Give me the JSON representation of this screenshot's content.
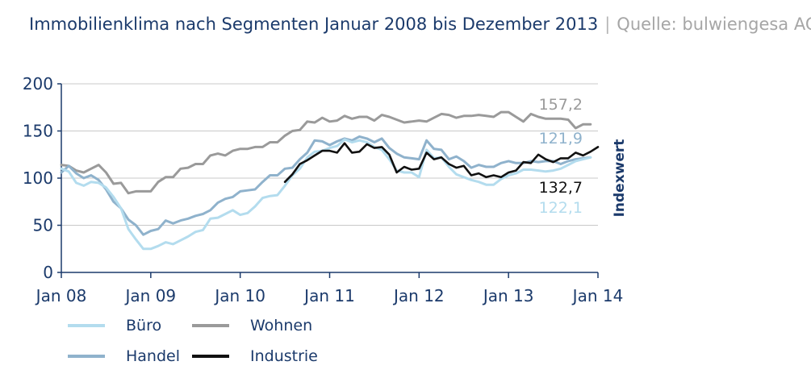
{
  "header": {
    "title": "Immobilienklima nach Segmenten Januar 2008 bis Dezember 2013",
    "separator": "|",
    "source": "Quelle: bulwiengesa AG"
  },
  "chart_data": {
    "type": "line",
    "title": "Immobilienklima nach Segmenten Januar 2008 bis Dezember 2013",
    "xlabel": "",
    "ylabel": "Indexwert",
    "xlim": [
      "2008-01",
      "2014-01"
    ],
    "ylim": [
      0,
      200
    ],
    "x_ticks": [
      "Jan 08",
      "Jan 09",
      "Jan 10",
      "Jan 11",
      "Jan 12",
      "Jan 13",
      "Jan 14"
    ],
    "y_ticks": [
      "0",
      "50",
      "100",
      "150",
      "200"
    ],
    "y_tick_values": [
      0,
      50,
      100,
      150,
      200
    ],
    "grid": "horizontal",
    "legend_position": "bottom",
    "series": [
      {
        "name": "Wohnen",
        "color": "#9a9a9a",
        "start": "2008-01",
        "end_label": "157,2",
        "values": [
          114,
          113,
          108,
          106,
          110,
          114,
          106,
          94,
          95,
          84,
          86,
          86,
          86,
          96,
          101,
          101,
          110,
          111,
          115,
          115,
          124,
          126,
          124,
          129,
          131,
          131,
          133,
          133,
          138,
          138,
          145,
          150,
          151,
          160,
          159,
          164,
          160,
          161,
          166,
          163,
          165,
          165,
          161,
          167,
          165,
          162,
          159,
          160,
          161,
          160,
          164,
          168,
          167,
          164,
          166,
          166,
          167,
          166,
          165,
          170,
          170,
          165,
          160,
          168,
          165,
          163,
          163,
          163,
          162,
          153,
          157,
          157
        ]
      },
      {
        "name": "Handel",
        "color": "#8fb2cc",
        "start": "2008-01",
        "end_label": "121,9",
        "values": [
          106,
          113,
          105,
          100,
          103,
          98,
          88,
          75,
          68,
          56,
          50,
          40,
          44,
          46,
          55,
          52,
          55,
          57,
          60,
          62,
          66,
          74,
          78,
          80,
          86,
          87,
          88,
          96,
          103,
          103,
          110,
          111,
          120,
          127,
          140,
          139,
          135,
          139,
          142,
          140,
          144,
          142,
          138,
          142,
          132,
          126,
          122,
          121,
          120,
          140,
          131,
          130,
          120,
          123,
          118,
          111,
          114,
          112,
          112,
          116,
          118,
          116,
          116,
          118,
          117,
          118,
          118,
          115,
          118,
          120,
          121,
          122
        ]
      },
      {
        "name": "Büro",
        "color": "#b3dcee",
        "start": "2008-01",
        "end_label": "122,1",
        "values": [
          110,
          107,
          95,
          92,
          96,
          95,
          90,
          80,
          68,
          46,
          35,
          25,
          25,
          28,
          32,
          30,
          34,
          38,
          43,
          45,
          57,
          58,
          62,
          66,
          61,
          63,
          70,
          79,
          81,
          82,
          92,
          103,
          110,
          122,
          128,
          129,
          132,
          134,
          141,
          138,
          140,
          138,
          133,
          130,
          120,
          108,
          106,
          106,
          101,
          130,
          121,
          122,
          112,
          104,
          101,
          98,
          96,
          93,
          93,
          99,
          103,
          105,
          109,
          109,
          108,
          107,
          108,
          110,
          114,
          118,
          120,
          122
        ]
      },
      {
        "name": "Industrie",
        "color": "#111111",
        "start": "2010-07",
        "end_label": "132,7",
        "values": [
          96,
          104,
          115,
          119,
          124,
          129,
          129,
          127,
          137,
          127,
          128,
          136,
          132,
          133,
          125,
          106,
          112,
          109,
          110,
          127,
          120,
          122,
          115,
          111,
          113,
          103,
          105,
          101,
          103,
          101,
          106,
          108,
          117,
          116,
          125,
          120,
          117,
          121,
          121,
          127,
          124,
          128,
          133
        ]
      }
    ]
  },
  "legend": {
    "items": [
      {
        "label": "Büro",
        "color": "#b3dcee"
      },
      {
        "label": "Wohnen",
        "color": "#9a9a9a"
      },
      {
        "label": "Handel",
        "color": "#8fb2cc"
      },
      {
        "label": "Industrie",
        "color": "#111111"
      }
    ]
  }
}
